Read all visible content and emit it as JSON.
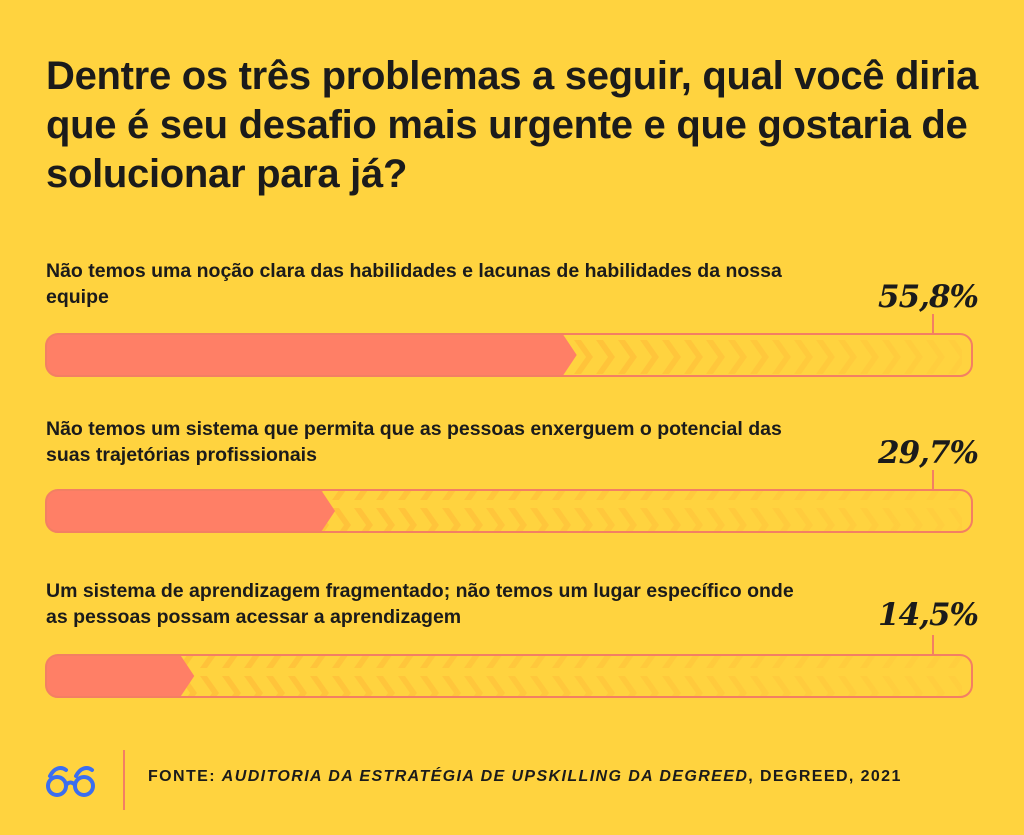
{
  "title": "Dentre os três problemas a seguir, qual você diria que é seu desafio mais urgente e que gostaria de solucionar para já?",
  "chart_data": {
    "type": "bar",
    "orientation": "horizontal",
    "categories": [
      "Não temos uma noção clara das habilidades e lacunas de habilidades da nossa equipe",
      "Não temos um sistema que permita que as pessoas enxerguem o potencial das suas trajetórias profissionais",
      "Um sistema de aprendizagem fragmentado; não temos um lugar específico onde as pessoas possam acessar a aprendizagem"
    ],
    "values": [
      55.8,
      29.7,
      14.5
    ],
    "value_labels": [
      "55,8%",
      "29,7%",
      "14,5%"
    ],
    "xlim": [
      0,
      100
    ],
    "unit": "%",
    "grid": false,
    "colors": {
      "background": "#FFD33F",
      "bar_fill": "#FF7F66",
      "bar_outline": "#F37F63",
      "chevron": "#FFC23A",
      "text": "#1B1B1B",
      "logo": "#3B6EF0"
    }
  },
  "footer": {
    "logo_icon": "degreed-glasses-icon",
    "source_prefix": "FONTE: ",
    "source_title": "AUDITORIA DA ESTRATÉGIA DE UPSKILLING DA DEGREED",
    "source_suffix": ", DEGREED, 2021"
  }
}
